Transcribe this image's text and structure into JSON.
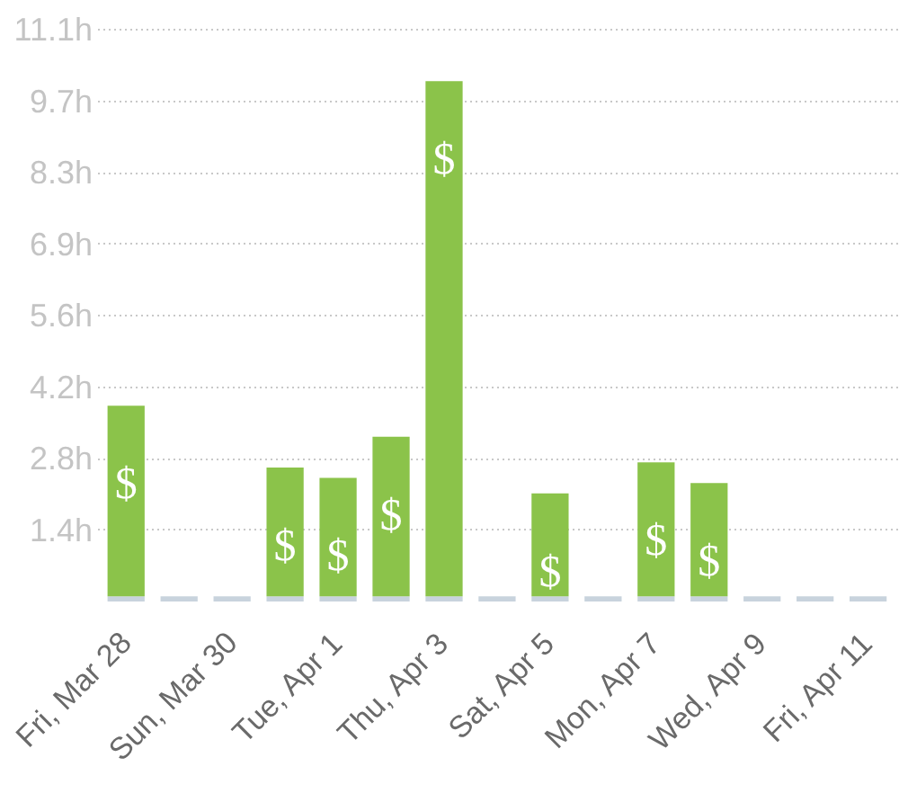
{
  "chart_data": {
    "type": "bar",
    "stacked": true,
    "categories": [
      "Fri, Mar 28",
      null,
      "Sun, Mar 30",
      null,
      "Tue, Apr 1",
      null,
      "Thu, Apr 3",
      null,
      "Sat, Apr 5",
      null,
      "Mon, Apr 7",
      null,
      "Wed, Apr 9",
      null,
      "Fri, Apr 11"
    ],
    "series": [
      {
        "color": "#c8d3dd",
        "values": [
          0.1,
          0.1,
          0.1,
          0.1,
          0.1,
          0.1,
          0.1,
          0.1,
          0.1,
          0.1,
          0.1,
          0.1,
          0.1,
          0.1,
          0.1
        ]
      },
      {
        "color": "#8bc34a",
        "values": [
          3.7,
          null,
          null,
          2.5,
          2.3,
          3.1,
          10.0,
          null,
          2.0,
          null,
          2.6,
          2.2,
          null,
          null,
          null
        ],
        "value_labels": [
          "$",
          null,
          null,
          "$",
          "$",
          "$",
          "$",
          null,
          "$",
          null,
          "$",
          "$",
          null,
          null,
          null
        ]
      }
    ],
    "ylim": [
      0,
      11.1
    ],
    "yticks": [
      {
        "value": 1.3875,
        "label": "1.4h"
      },
      {
        "value": 2.775,
        "label": "2.8h"
      },
      {
        "value": 4.1625,
        "label": "4.2h"
      },
      {
        "value": 5.55,
        "label": "5.6h"
      },
      {
        "value": 6.9375,
        "label": "6.9h"
      },
      {
        "value": 8.325,
        "label": "8.3h"
      },
      {
        "value": 9.7125,
        "label": "9.7h"
      },
      {
        "value": 11.1,
        "label": "11.1h"
      }
    ],
    "grid": "y"
  }
}
